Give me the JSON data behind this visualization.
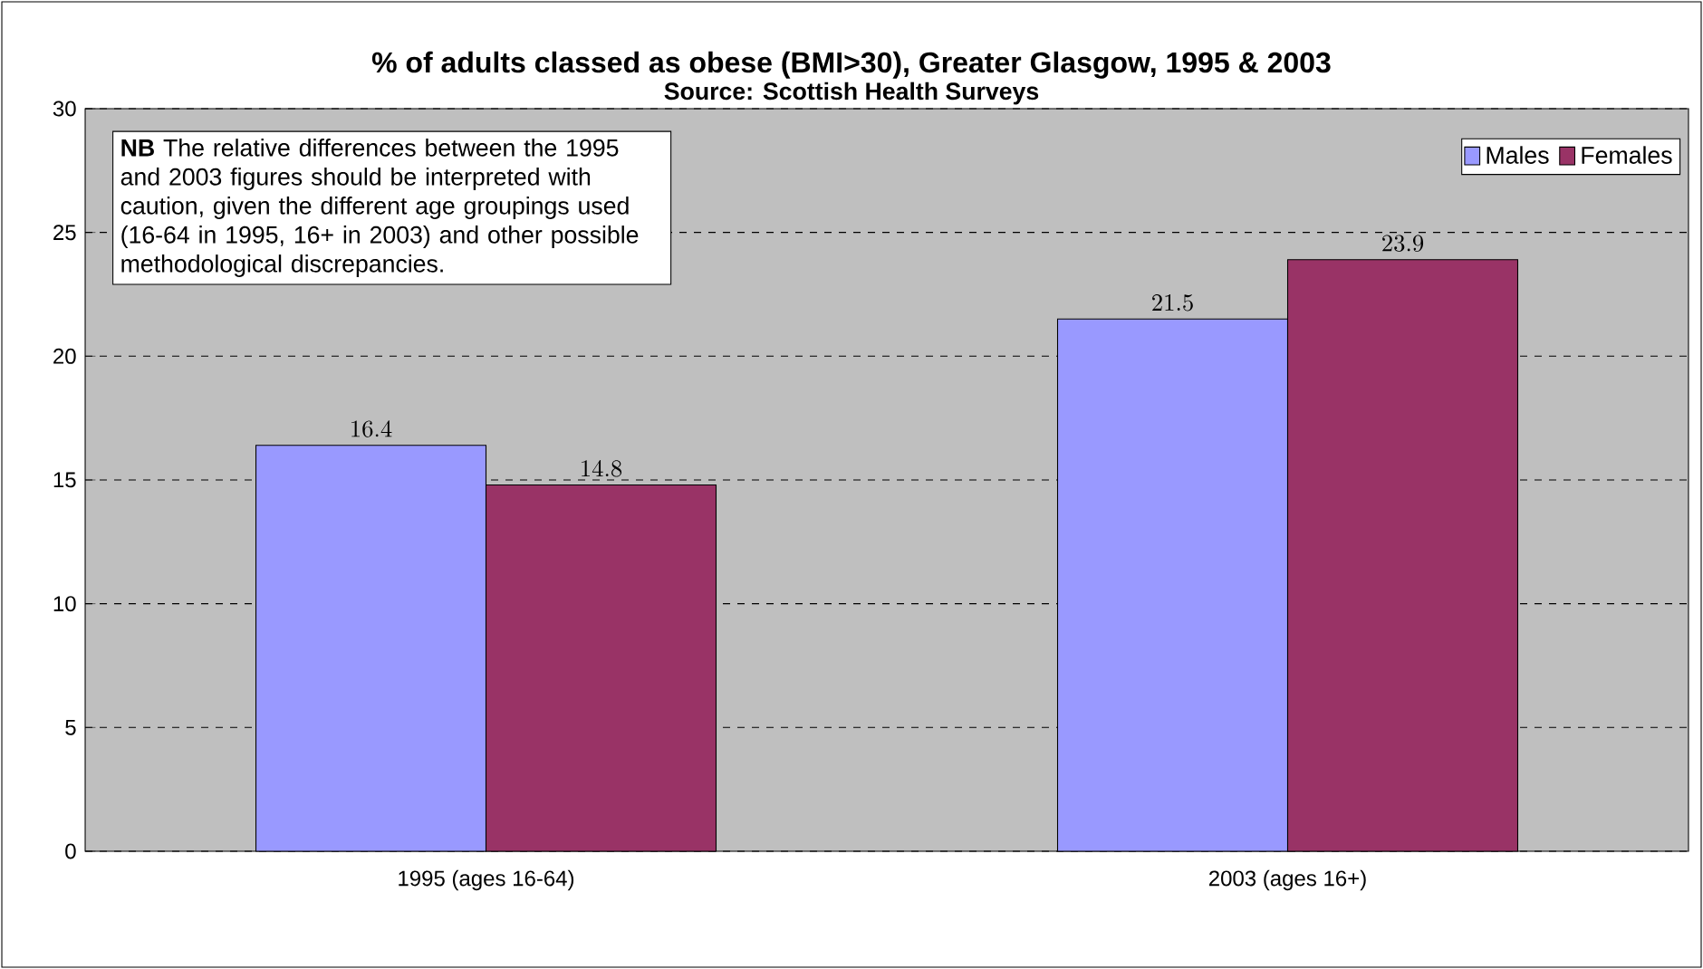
{
  "chart_data": {
    "type": "bar",
    "title": "% of adults classed as obese (BMI>30), Greater Glasgow, 1995 & 2003",
    "subtitle": "Source: Scottish Health Surveys",
    "categories": [
      "1995 (ages 16-64)",
      "2003 (ages 16+)"
    ],
    "series": [
      {
        "name": "Males",
        "color": "#9999ff",
        "values": [
          16.4,
          21.5
        ]
      },
      {
        "name": "Females",
        "color": "#993366",
        "values": [
          14.8,
          23.9
        ]
      }
    ],
    "ylim": [
      0,
      30
    ],
    "yticks": [
      0,
      5,
      10,
      15,
      20,
      25,
      30
    ],
    "grid": "y",
    "legend": "top right",
    "data_labels": true,
    "annotations": [
      "**NB** The relative differences between the 1995 and 2003 figures should be interpreted with caution, given the different age groupings used (16-64 in 1995, 16+ in 2003) and other possible methodological discrepancies."
    ]
  }
}
